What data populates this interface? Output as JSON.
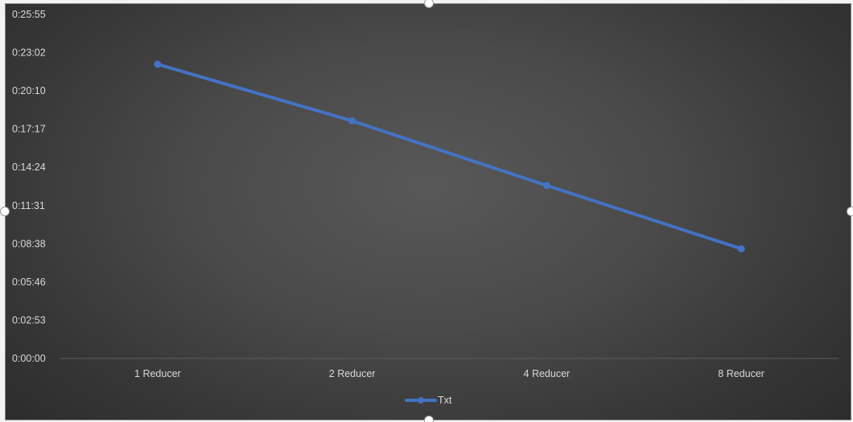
{
  "chart_data": {
    "type": "line",
    "categories": [
      "1 Reducer",
      "2 Reducer",
      "4 Reducer",
      "8 Reducer"
    ],
    "series": [
      {
        "name": "Txt",
        "values": [
          "0:22:10",
          "0:17:54",
          "0:13:02",
          "0:08:16"
        ],
        "color": "#4472c4"
      }
    ],
    "y_ticks": [
      "0:00:00",
      "0:02:53",
      "0:05:46",
      "0:08:38",
      "0:11:31",
      "0:14:24",
      "0:17:17",
      "0:20:10",
      "0:23:02",
      "0:25:55"
    ],
    "ylim": [
      "0:00:00",
      "0:25:55"
    ],
    "grid": false,
    "legend": "bottom-center",
    "background": "#4a4a4a",
    "text_color": "#d9d9d9"
  }
}
